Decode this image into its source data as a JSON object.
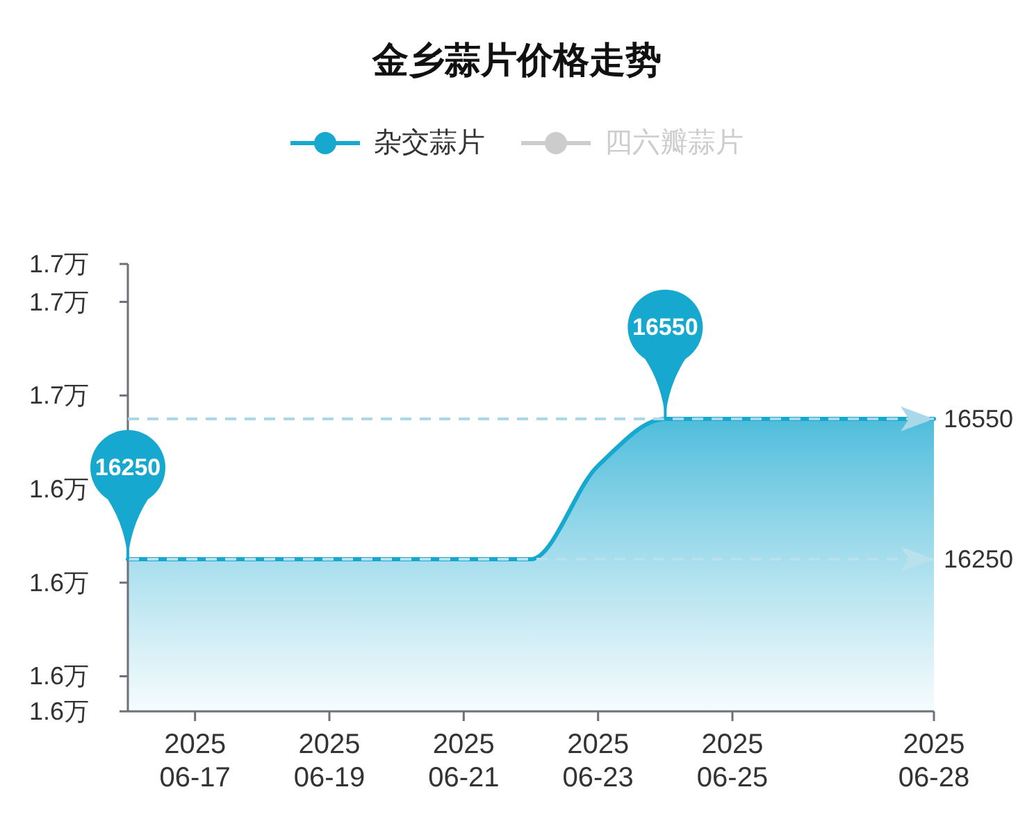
{
  "chart_data": {
    "type": "area",
    "title": "金乡蒜片价格走势",
    "x": [
      "2025-06-16",
      "2025-06-17",
      "2025-06-18",
      "2025-06-19",
      "2025-06-20",
      "2025-06-21",
      "2025-06-22",
      "2025-06-23",
      "2025-06-24",
      "2025-06-25",
      "2025-06-26",
      "2025-06-27",
      "2025-06-28"
    ],
    "series": [
      {
        "name": "杂交蒜片",
        "color": "#17a8d0",
        "values": [
          1.625,
          1.625,
          1.625,
          1.625,
          1.625,
          1.625,
          1.625,
          1.645,
          1.655,
          1.655,
          1.655,
          1.655,
          1.655
        ]
      },
      {
        "name": "四六瓣蒜片",
        "color": "#cccccc",
        "values": [
          null,
          null,
          null,
          null,
          null,
          null,
          null,
          null,
          null,
          null,
          null,
          null,
          null
        ]
      }
    ],
    "xlim": [
      "2025-06-16",
      "2025-06-28"
    ],
    "xticks": [
      {
        "value": "2025-06-17",
        "label": "2025\n06-17"
      },
      {
        "value": "2025-06-19",
        "label": "2025\n06-19"
      },
      {
        "value": "2025-06-21",
        "label": "2025\n06-21"
      },
      {
        "value": "2025-06-23",
        "label": "2025\n06-23"
      },
      {
        "value": "2025-06-25",
        "label": "2025\n06-25"
      },
      {
        "value": "2025-06-28",
        "label": "2025\n06-28"
      }
    ],
    "ylim": [
      1.5925,
      1.6881
    ],
    "yticks": [
      {
        "value": 1.5925,
        "label": "1.6万"
      },
      {
        "value": 1.6,
        "label": "1.6万"
      },
      {
        "value": 1.62,
        "label": "1.6万"
      },
      {
        "value": 1.64,
        "label": "1.6万"
      },
      {
        "value": 1.66,
        "label": "1.7万"
      },
      {
        "value": 1.68,
        "label": "1.7万"
      },
      {
        "value": 1.6881,
        "label": "1.7万"
      }
    ],
    "ref_lines": [
      {
        "axis": "y",
        "value": 1.655,
        "color": "#a9d9e8",
        "line_style": "dashed"
      },
      {
        "axis": "y",
        "value": 1.625,
        "color": "#b9e1ec",
        "line_style": "dashed"
      }
    ],
    "annotations": [
      {
        "text": "16550",
        "x": "2025-06-24",
        "y": 1.655
      },
      {
        "text": "16250",
        "x": "2025-06-16",
        "y": 1.625
      },
      {
        "text": "16550",
        "x": "2025-06-28",
        "y": 1.655
      },
      {
        "text": "16250",
        "x": "2025-06-28",
        "y": 1.625
      }
    ],
    "legend": "top",
    "line_style": "solid"
  }
}
